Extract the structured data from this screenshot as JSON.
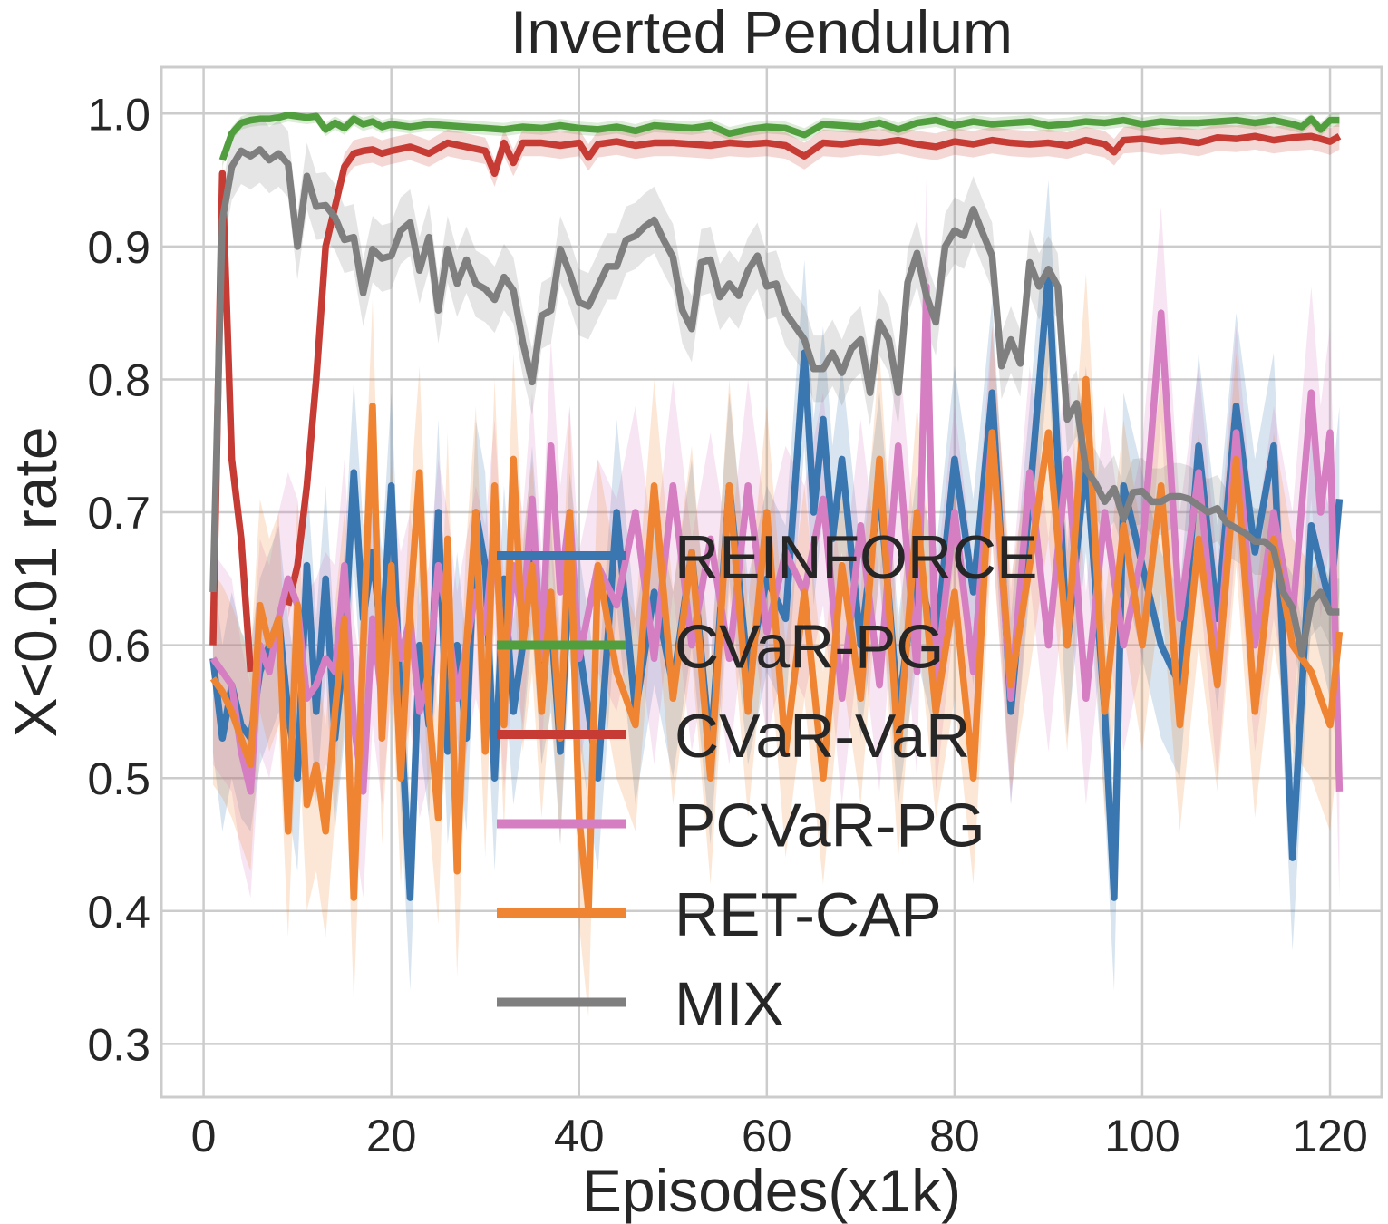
{
  "chart_data": {
    "type": "line",
    "title": "Inverted Pendulum",
    "xlabel": "Episodes(x1k)",
    "ylabel": "X<0.01 rate",
    "xlim": [
      -4.5,
      125.5
    ],
    "ylim": [
      0.26,
      1.035
    ],
    "xticks": [
      0,
      20,
      40,
      60,
      80,
      100,
      120
    ],
    "xtick_labels": [
      "0",
      "20",
      "40",
      "60",
      "80",
      "100",
      "120"
    ],
    "yticks": [
      0.3,
      0.4,
      0.5,
      0.6,
      0.7,
      0.8,
      0.9,
      1.0
    ],
    "ytick_labels": [
      "0.3",
      "0.4",
      "0.5",
      "0.6",
      "0.7",
      "0.8",
      "0.9",
      "1.0"
    ],
    "grid": true,
    "legend_position": "center",
    "series": [
      {
        "name": "REINFORCE",
        "color": "#3a76af",
        "band": 0.07,
        "x": [
          1,
          2,
          3,
          4,
          5,
          6,
          7,
          8,
          9,
          10,
          11,
          12,
          13,
          14,
          15,
          16,
          17,
          18,
          19,
          20,
          21,
          22,
          23,
          24,
          25,
          26,
          27,
          28,
          29,
          30,
          31,
          32,
          33,
          34,
          35,
          36,
          37,
          38,
          39,
          40,
          42,
          44,
          46,
          48,
          50,
          52,
          54,
          56,
          58,
          60,
          62,
          64,
          65,
          66,
          67,
          68,
          70,
          72,
          74,
          76,
          78,
          80,
          82,
          84,
          86,
          88,
          90,
          92,
          94,
          96,
          97,
          98,
          100,
          102,
          104,
          106,
          108,
          110,
          112,
          114,
          116,
          118,
          120,
          121
        ],
        "y": [
          0.59,
          0.53,
          0.57,
          0.54,
          0.53,
          0.58,
          0.6,
          0.62,
          0.55,
          0.5,
          0.66,
          0.55,
          0.65,
          0.53,
          0.6,
          0.73,
          0.62,
          0.67,
          0.6,
          0.72,
          0.55,
          0.41,
          0.6,
          0.54,
          0.7,
          0.52,
          0.6,
          0.53,
          0.7,
          0.66,
          0.5,
          0.65,
          0.55,
          0.6,
          0.68,
          0.58,
          0.62,
          0.52,
          0.66,
          0.6,
          0.5,
          0.7,
          0.55,
          0.64,
          0.57,
          0.67,
          0.52,
          0.72,
          0.58,
          0.65,
          0.62,
          0.82,
          0.7,
          0.77,
          0.68,
          0.74,
          0.6,
          0.72,
          0.55,
          0.66,
          0.6,
          0.74,
          0.64,
          0.79,
          0.55,
          0.71,
          0.88,
          0.6,
          0.74,
          0.55,
          0.41,
          0.72,
          0.66,
          0.6,
          0.57,
          0.75,
          0.62,
          0.78,
          0.67,
          0.75,
          0.44,
          0.69,
          0.63,
          0.71
        ]
      },
      {
        "name": "CVaR-PG",
        "color": "#519e3e",
        "band": 0.005,
        "x": [
          2,
          3,
          4,
          5,
          6,
          7,
          8,
          9,
          10,
          11,
          12,
          13,
          14,
          15,
          16,
          17,
          18,
          19,
          20,
          22,
          24,
          26,
          28,
          30,
          32,
          34,
          36,
          38,
          40,
          42,
          44,
          46,
          48,
          50,
          52,
          54,
          56,
          58,
          60,
          62,
          64,
          66,
          68,
          70,
          72,
          74,
          76,
          78,
          80,
          82,
          84,
          86,
          88,
          90,
          92,
          94,
          96,
          98,
          100,
          102,
          104,
          106,
          108,
          110,
          112,
          114,
          116,
          117,
          118,
          119,
          120,
          121
        ],
        "y": [
          0.965,
          0.985,
          0.993,
          0.995,
          0.996,
          0.996,
          0.997,
          0.999,
          0.998,
          0.997,
          0.998,
          0.988,
          0.993,
          0.989,
          0.996,
          0.992,
          0.994,
          0.99,
          0.992,
          0.99,
          0.992,
          0.991,
          0.99,
          0.989,
          0.988,
          0.99,
          0.989,
          0.991,
          0.989,
          0.988,
          0.99,
          0.987,
          0.991,
          0.99,
          0.989,
          0.991,
          0.985,
          0.988,
          0.99,
          0.989,
          0.984,
          0.992,
          0.991,
          0.99,
          0.993,
          0.988,
          0.993,
          0.995,
          0.991,
          0.994,
          0.992,
          0.993,
          0.994,
          0.991,
          0.992,
          0.994,
          0.993,
          0.995,
          0.992,
          0.994,
          0.993,
          0.993,
          0.994,
          0.995,
          0.993,
          0.995,
          0.992,
          0.99,
          0.996,
          0.988,
          0.995,
          0.995
        ]
      },
      {
        "name": "CVaR-VaR",
        "color": "#c63b33",
        "band": 0.01,
        "x": [
          1,
          2,
          3,
          4,
          5,
          "gap",
          9,
          10,
          11,
          12,
          13,
          14,
          15,
          16,
          17,
          18,
          19,
          20,
          22,
          24,
          26,
          28,
          30,
          31,
          32,
          33,
          34,
          36,
          38,
          40,
          41,
          42,
          44,
          46,
          48,
          50,
          52,
          54,
          56,
          58,
          60,
          62,
          64,
          66,
          68,
          70,
          72,
          74,
          76,
          78,
          80,
          82,
          84,
          86,
          88,
          90,
          92,
          94,
          96,
          97,
          98,
          100,
          102,
          104,
          106,
          108,
          110,
          112,
          114,
          116,
          118,
          120,
          121
        ],
        "y": [
          0.6,
          0.955,
          0.74,
          0.68,
          0.58,
          "gap",
          0.63,
          0.66,
          0.72,
          0.8,
          0.9,
          0.93,
          0.96,
          0.97,
          0.972,
          0.973,
          0.97,
          0.972,
          0.975,
          0.97,
          0.978,
          0.975,
          0.972,
          0.955,
          0.978,
          0.963,
          0.978,
          0.978,
          0.976,
          0.978,
          0.967,
          0.977,
          0.979,
          0.976,
          0.978,
          0.978,
          0.977,
          0.976,
          0.978,
          0.977,
          0.978,
          0.976,
          0.968,
          0.978,
          0.977,
          0.979,
          0.978,
          0.98,
          0.977,
          0.975,
          0.979,
          0.977,
          0.98,
          0.978,
          0.977,
          0.978,
          0.976,
          0.98,
          0.977,
          0.971,
          0.98,
          0.981,
          0.979,
          0.98,
          0.978,
          0.982,
          0.981,
          0.983,
          0.98,
          0.982,
          0.983,
          0.979,
          0.983
        ]
      },
      {
        "name": "PCVaR-PG",
        "color": "#d67ec2",
        "band": 0.08,
        "x": [
          1,
          2,
          3,
          4,
          5,
          6,
          7,
          8,
          9,
          10,
          11,
          12,
          13,
          14,
          15,
          16,
          17,
          18,
          19,
          20,
          21,
          22,
          23,
          24,
          25,
          26,
          27,
          28,
          29,
          30,
          31,
          32,
          33,
          34,
          35,
          36,
          37,
          38,
          39,
          40,
          42,
          44,
          46,
          48,
          50,
          52,
          54,
          56,
          58,
          60,
          62,
          64,
          66,
          68,
          70,
          72,
          74,
          76,
          77,
          78,
          80,
          82,
          84,
          86,
          88,
          90,
          92,
          94,
          96,
          98,
          100,
          102,
          104,
          106,
          108,
          110,
          112,
          114,
          116,
          118,
          119,
          120,
          121
        ],
        "y": [
          0.59,
          0.58,
          0.57,
          0.52,
          0.49,
          0.6,
          0.58,
          0.62,
          0.65,
          0.63,
          0.56,
          0.57,
          0.59,
          0.58,
          0.66,
          0.54,
          0.49,
          0.62,
          0.56,
          0.64,
          0.59,
          0.62,
          0.55,
          0.58,
          0.66,
          0.62,
          0.56,
          0.6,
          0.64,
          0.61,
          0.69,
          0.57,
          0.66,
          0.62,
          0.71,
          0.59,
          0.75,
          0.64,
          0.7,
          0.59,
          0.66,
          0.63,
          0.7,
          0.59,
          0.72,
          0.6,
          0.68,
          0.59,
          0.72,
          0.61,
          0.67,
          0.64,
          0.71,
          0.56,
          0.69,
          0.57,
          0.75,
          0.58,
          0.87,
          0.57,
          0.7,
          0.58,
          0.76,
          0.56,
          0.73,
          0.6,
          0.74,
          0.56,
          0.7,
          0.6,
          0.67,
          0.85,
          0.62,
          0.73,
          0.58,
          0.76,
          0.6,
          0.7,
          0.62,
          0.79,
          0.7,
          0.76,
          0.49
        ]
      },
      {
        "name": "RET-CAP",
        "color": "#ef8533",
        "band": 0.08,
        "x": [
          1,
          2,
          3,
          4,
          5,
          6,
          7,
          8,
          9,
          10,
          11,
          12,
          13,
          14,
          15,
          16,
          17,
          18,
          19,
          20,
          21,
          22,
          23,
          24,
          25,
          26,
          27,
          28,
          29,
          30,
          31,
          32,
          33,
          34,
          35,
          36,
          37,
          38,
          39,
          40,
          41,
          42,
          44,
          46,
          48,
          50,
          52,
          54,
          56,
          58,
          60,
          62,
          64,
          66,
          68,
          70,
          72,
          74,
          76,
          78,
          80,
          82,
          84,
          86,
          88,
          90,
          92,
          94,
          96,
          98,
          100,
          102,
          104,
          106,
          108,
          110,
          112,
          114,
          116,
          118,
          120,
          121
        ],
        "y": [
          0.575,
          0.565,
          0.55,
          0.53,
          0.51,
          0.63,
          0.6,
          0.62,
          0.46,
          0.63,
          0.48,
          0.51,
          0.46,
          0.55,
          0.62,
          0.41,
          0.6,
          0.78,
          0.53,
          0.66,
          0.5,
          0.63,
          0.73,
          0.55,
          0.47,
          0.68,
          0.43,
          0.6,
          0.7,
          0.52,
          0.72,
          0.54,
          0.74,
          0.6,
          0.66,
          0.55,
          0.64,
          0.53,
          0.7,
          0.47,
          0.4,
          0.66,
          0.58,
          0.54,
          0.72,
          0.56,
          0.67,
          0.5,
          0.72,
          0.55,
          0.7,
          0.52,
          0.64,
          0.5,
          0.66,
          0.56,
          0.74,
          0.52,
          0.7,
          0.55,
          0.64,
          0.5,
          0.76,
          0.57,
          0.66,
          0.76,
          0.6,
          0.8,
          0.55,
          0.69,
          0.6,
          0.72,
          0.54,
          0.68,
          0.57,
          0.74,
          0.55,
          0.68,
          0.6,
          0.58,
          0.54,
          0.61
        ]
      },
      {
        "name": "MIX",
        "color": "#7f7f7f",
        "band": 0.025,
        "x": [
          1,
          2,
          3,
          4,
          5,
          6,
          7,
          8,
          9,
          10,
          11,
          12,
          13,
          14,
          15,
          16,
          17,
          18,
          19,
          20,
          21,
          22,
          23,
          24,
          25,
          26,
          27,
          28,
          29,
          30,
          31,
          32,
          33,
          34,
          35,
          36,
          37,
          38,
          39,
          40,
          41,
          42,
          43,
          44,
          45,
          46,
          47,
          48,
          49,
          50,
          51,
          52,
          53,
          54,
          55,
          56,
          57,
          58,
          59,
          60,
          61,
          62,
          63,
          64,
          65,
          66,
          67,
          68,
          69,
          70,
          71,
          72,
          73,
          74,
          75,
          76,
          77,
          78,
          79,
          80,
          81,
          82,
          83,
          84,
          85,
          86,
          87,
          88,
          89,
          90,
          91,
          92,
          93,
          94,
          95,
          96,
          97,
          98,
          99,
          100,
          101,
          102,
          103,
          104,
          105,
          106,
          107,
          108,
          109,
          110,
          111,
          112,
          113,
          114,
          115,
          116,
          117,
          118,
          119,
          120,
          121
        ],
        "y": [
          0.64,
          0.92,
          0.96,
          0.972,
          0.968,
          0.973,
          0.965,
          0.97,
          0.962,
          0.9,
          0.953,
          0.93,
          0.931,
          0.922,
          0.905,
          0.907,
          0.865,
          0.898,
          0.891,
          0.893,
          0.912,
          0.918,
          0.882,
          0.907,
          0.852,
          0.898,
          0.872,
          0.89,
          0.872,
          0.868,
          0.86,
          0.877,
          0.867,
          0.828,
          0.798,
          0.848,
          0.852,
          0.898,
          0.88,
          0.858,
          0.855,
          0.87,
          0.885,
          0.885,
          0.905,
          0.908,
          0.915,
          0.92,
          0.905,
          0.892,
          0.852,
          0.838,
          0.888,
          0.89,
          0.862,
          0.872,
          0.863,
          0.882,
          0.893,
          0.87,
          0.872,
          0.85,
          0.84,
          0.83,
          0.808,
          0.808,
          0.82,
          0.805,
          0.823,
          0.83,
          0.79,
          0.843,
          0.83,
          0.79,
          0.873,
          0.895,
          0.863,
          0.843,
          0.9,
          0.912,
          0.908,
          0.928,
          0.91,
          0.893,
          0.81,
          0.83,
          0.812,
          0.888,
          0.87,
          0.883,
          0.87,
          0.77,
          0.782,
          0.732,
          0.722,
          0.708,
          0.718,
          0.695,
          0.715,
          0.716,
          0.708,
          0.708,
          0.712,
          0.712,
          0.71,
          0.705,
          0.7,
          0.703,
          0.692,
          0.688,
          0.684,
          0.678,
          0.678,
          0.672,
          0.64,
          0.628,
          0.593,
          0.632,
          0.64,
          0.625,
          0.625
        ]
      }
    ]
  }
}
